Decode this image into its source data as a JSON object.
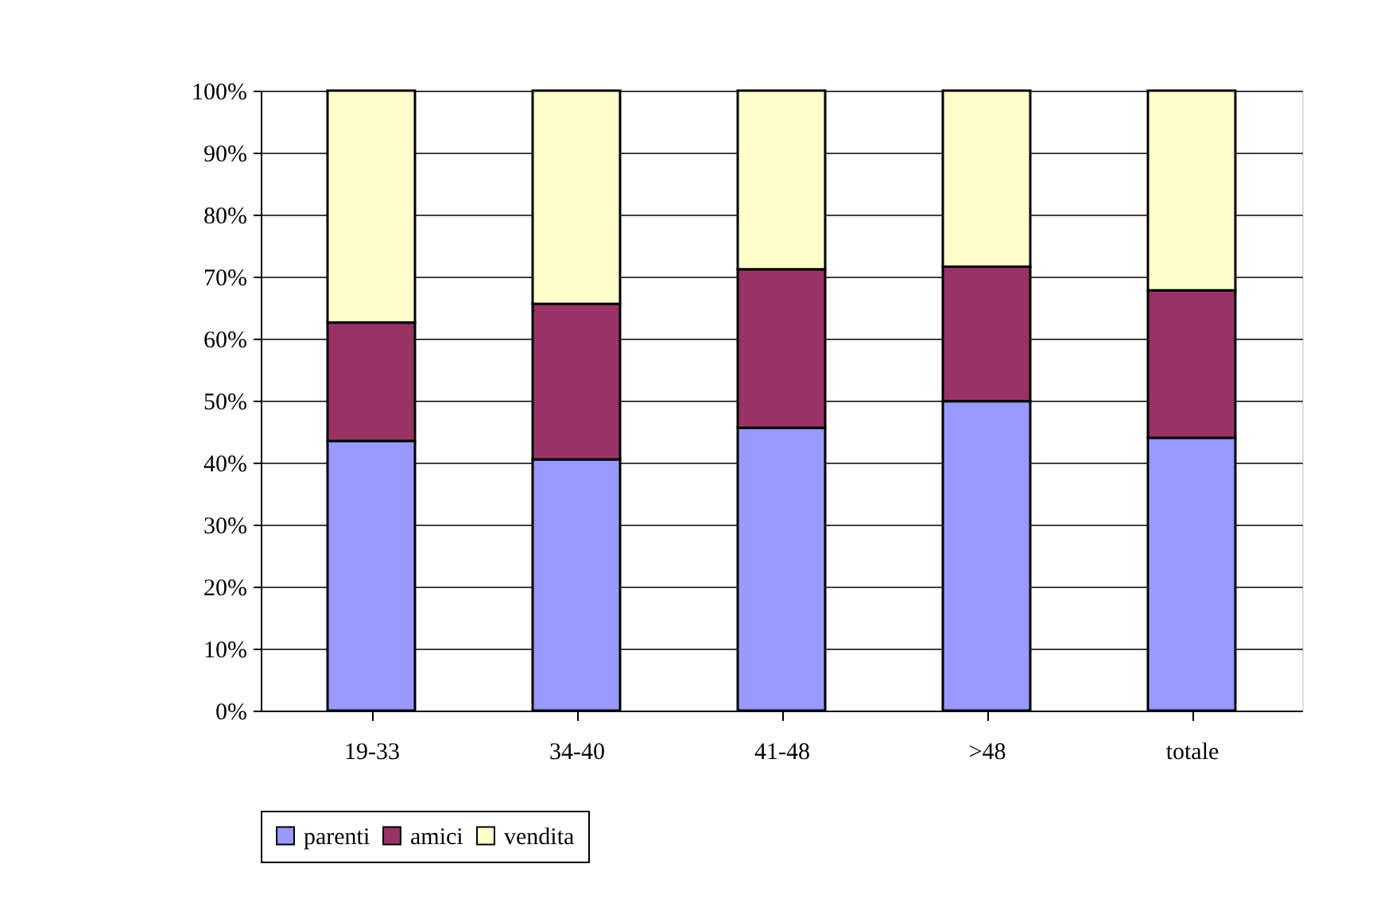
{
  "chart_data": {
    "type": "bar",
    "stacked": true,
    "categories": [
      "19-33",
      "34-40",
      "41-48",
      ">48",
      "totale"
    ],
    "series": [
      {
        "name": "parenti",
        "color": "#9999ff",
        "values": [
          43.5,
          40.5,
          45.6,
          49.9,
          44.0
        ]
      },
      {
        "name": "amici",
        "color": "#993366",
        "values": [
          19.1,
          25.1,
          25.6,
          21.7,
          23.8
        ]
      },
      {
        "name": "vendita",
        "color": "#ffffcc",
        "values": [
          37.4,
          34.4,
          28.8,
          28.4,
          32.2
        ]
      }
    ],
    "ylim": [
      0,
      100
    ],
    "yticks": [
      {
        "value": 0,
        "label": "0%"
      },
      {
        "value": 10,
        "label": "10%"
      },
      {
        "value": 20,
        "label": "20%"
      },
      {
        "value": 30,
        "label": "30%"
      },
      {
        "value": 40,
        "label": "40%"
      },
      {
        "value": 50,
        "label": "50%"
      },
      {
        "value": 60,
        "label": "60%"
      },
      {
        "value": 70,
        "label": "70%"
      },
      {
        "value": 80,
        "label": "80%"
      },
      {
        "value": 90,
        "label": "90%"
      },
      {
        "value": 100,
        "label": "100%"
      }
    ],
    "grid": "y",
    "legend": "bottom"
  }
}
